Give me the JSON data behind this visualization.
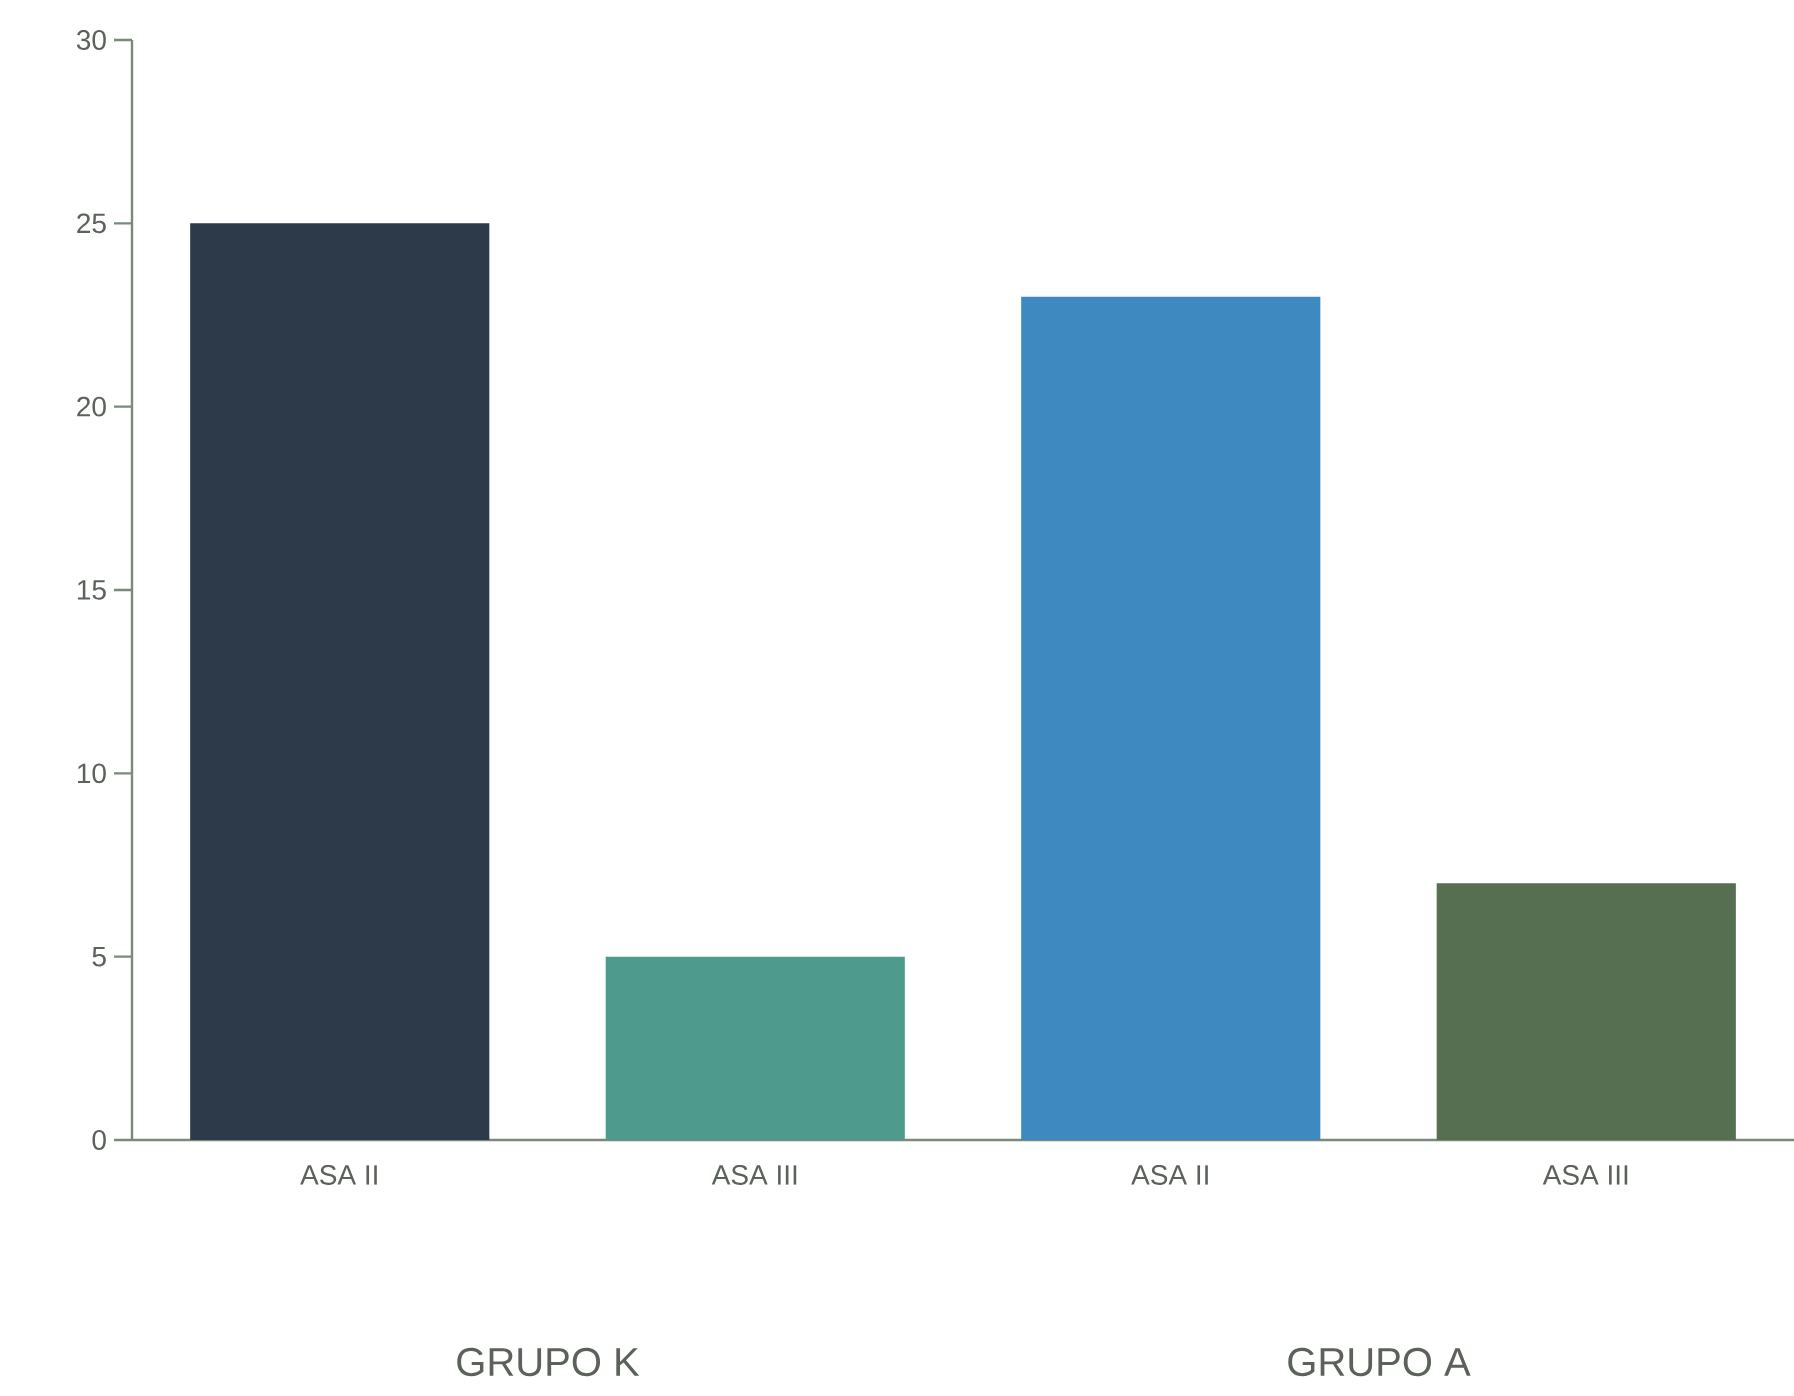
{
  "chart_data": {
    "type": "bar",
    "categories": [
      "ASA II",
      "ASA III",
      "ASA II",
      "ASA III"
    ],
    "values": [
      25,
      5,
      23,
      7
    ],
    "colors": [
      "#2c3a49",
      "#4e9a8c",
      "#3e89bf",
      "#556f50"
    ],
    "ylim": [
      0,
      30
    ],
    "yticks": [
      0,
      5,
      10,
      15,
      20,
      25,
      30
    ],
    "annotations": [
      "GRUPO K",
      "GRUPO A"
    ]
  }
}
